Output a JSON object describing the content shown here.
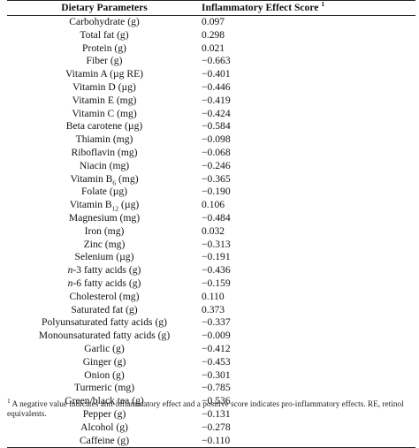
{
  "table": {
    "header": {
      "col1": "Dietary Parameters",
      "col2": "Inflammatory Effect Score",
      "col2_sup": "1"
    },
    "rows": [
      {
        "param": "Carbohydrate (g)",
        "score": "0.097"
      },
      {
        "param": "Total fat (g)",
        "score": "0.298"
      },
      {
        "param": "Protein (g)",
        "score": "0.021"
      },
      {
        "param": "Fiber (g)",
        "score": "−0.663"
      },
      {
        "param": "Vitamin A (µg RE)",
        "score": "−0.401"
      },
      {
        "param": "Vitamin D (µg)",
        "score": "−0.446"
      },
      {
        "param": "Vitamin E (mg)",
        "score": "−0.419"
      },
      {
        "param": "Vitamin C (mg)",
        "score": "−0.424"
      },
      {
        "param": "Beta carotene (µg)",
        "score": "−0.584"
      },
      {
        "param": "Thiamin (mg)",
        "score": "−0.098"
      },
      {
        "param": "Riboflavin (mg)",
        "score": "−0.068"
      },
      {
        "param": "Niacin (mg)",
        "score": "−0.246"
      },
      {
        "param_pre": "Vitamin B",
        "param_sub": "6",
        "param_post": " (mg)",
        "score": "−0.365"
      },
      {
        "param": "Folate (µg)",
        "score": "−0.190"
      },
      {
        "param_pre": "Vitamin B",
        "param_sub": "12",
        "param_post": " (µg)",
        "score": "0.106"
      },
      {
        "param": "Magnesium (mg)",
        "score": "−0.484"
      },
      {
        "param": "Iron (mg)",
        "score": "0.032"
      },
      {
        "param": "Zinc (mg)",
        "score": "−0.313"
      },
      {
        "param": "Selenium (µg)",
        "score": "−0.191"
      },
      {
        "param_italic": "n",
        "param_post": "-3 fatty acids (g)",
        "score": "−0.436"
      },
      {
        "param_italic": "n",
        "param_post": "-6 fatty acids (g)",
        "score": "−0.159"
      },
      {
        "param": "Cholesterol (mg)",
        "score": "0.110"
      },
      {
        "param": "Saturated fat (g)",
        "score": "0.373"
      },
      {
        "param": "Polyunsaturated fatty acids (g)",
        "score": "−0.337"
      },
      {
        "param": "Monounsaturated fatty acids (g)",
        "score": "−0.009"
      },
      {
        "param": "Garlic (g)",
        "score": "−0.412"
      },
      {
        "param": "Ginger (g)",
        "score": "−0.453"
      },
      {
        "param": "Onion (g)",
        "score": "−0.301"
      },
      {
        "param": "Turmeric (mg)",
        "score": "−0.785"
      },
      {
        "param": "Green/black tea (g)",
        "score": "−0.536"
      },
      {
        "param": "Pepper (g)",
        "score": "−0.131"
      },
      {
        "param": "Alcohol (g)",
        "score": "−0.278"
      },
      {
        "param": "Caffeine (g)",
        "score": "−0.110"
      }
    ]
  },
  "footnote": {
    "mark": "1",
    "text": " A negative value indicates anti-inflammatory effect and a positive score indicates pro-inflammatory effects. RE, retinol equivalents."
  }
}
